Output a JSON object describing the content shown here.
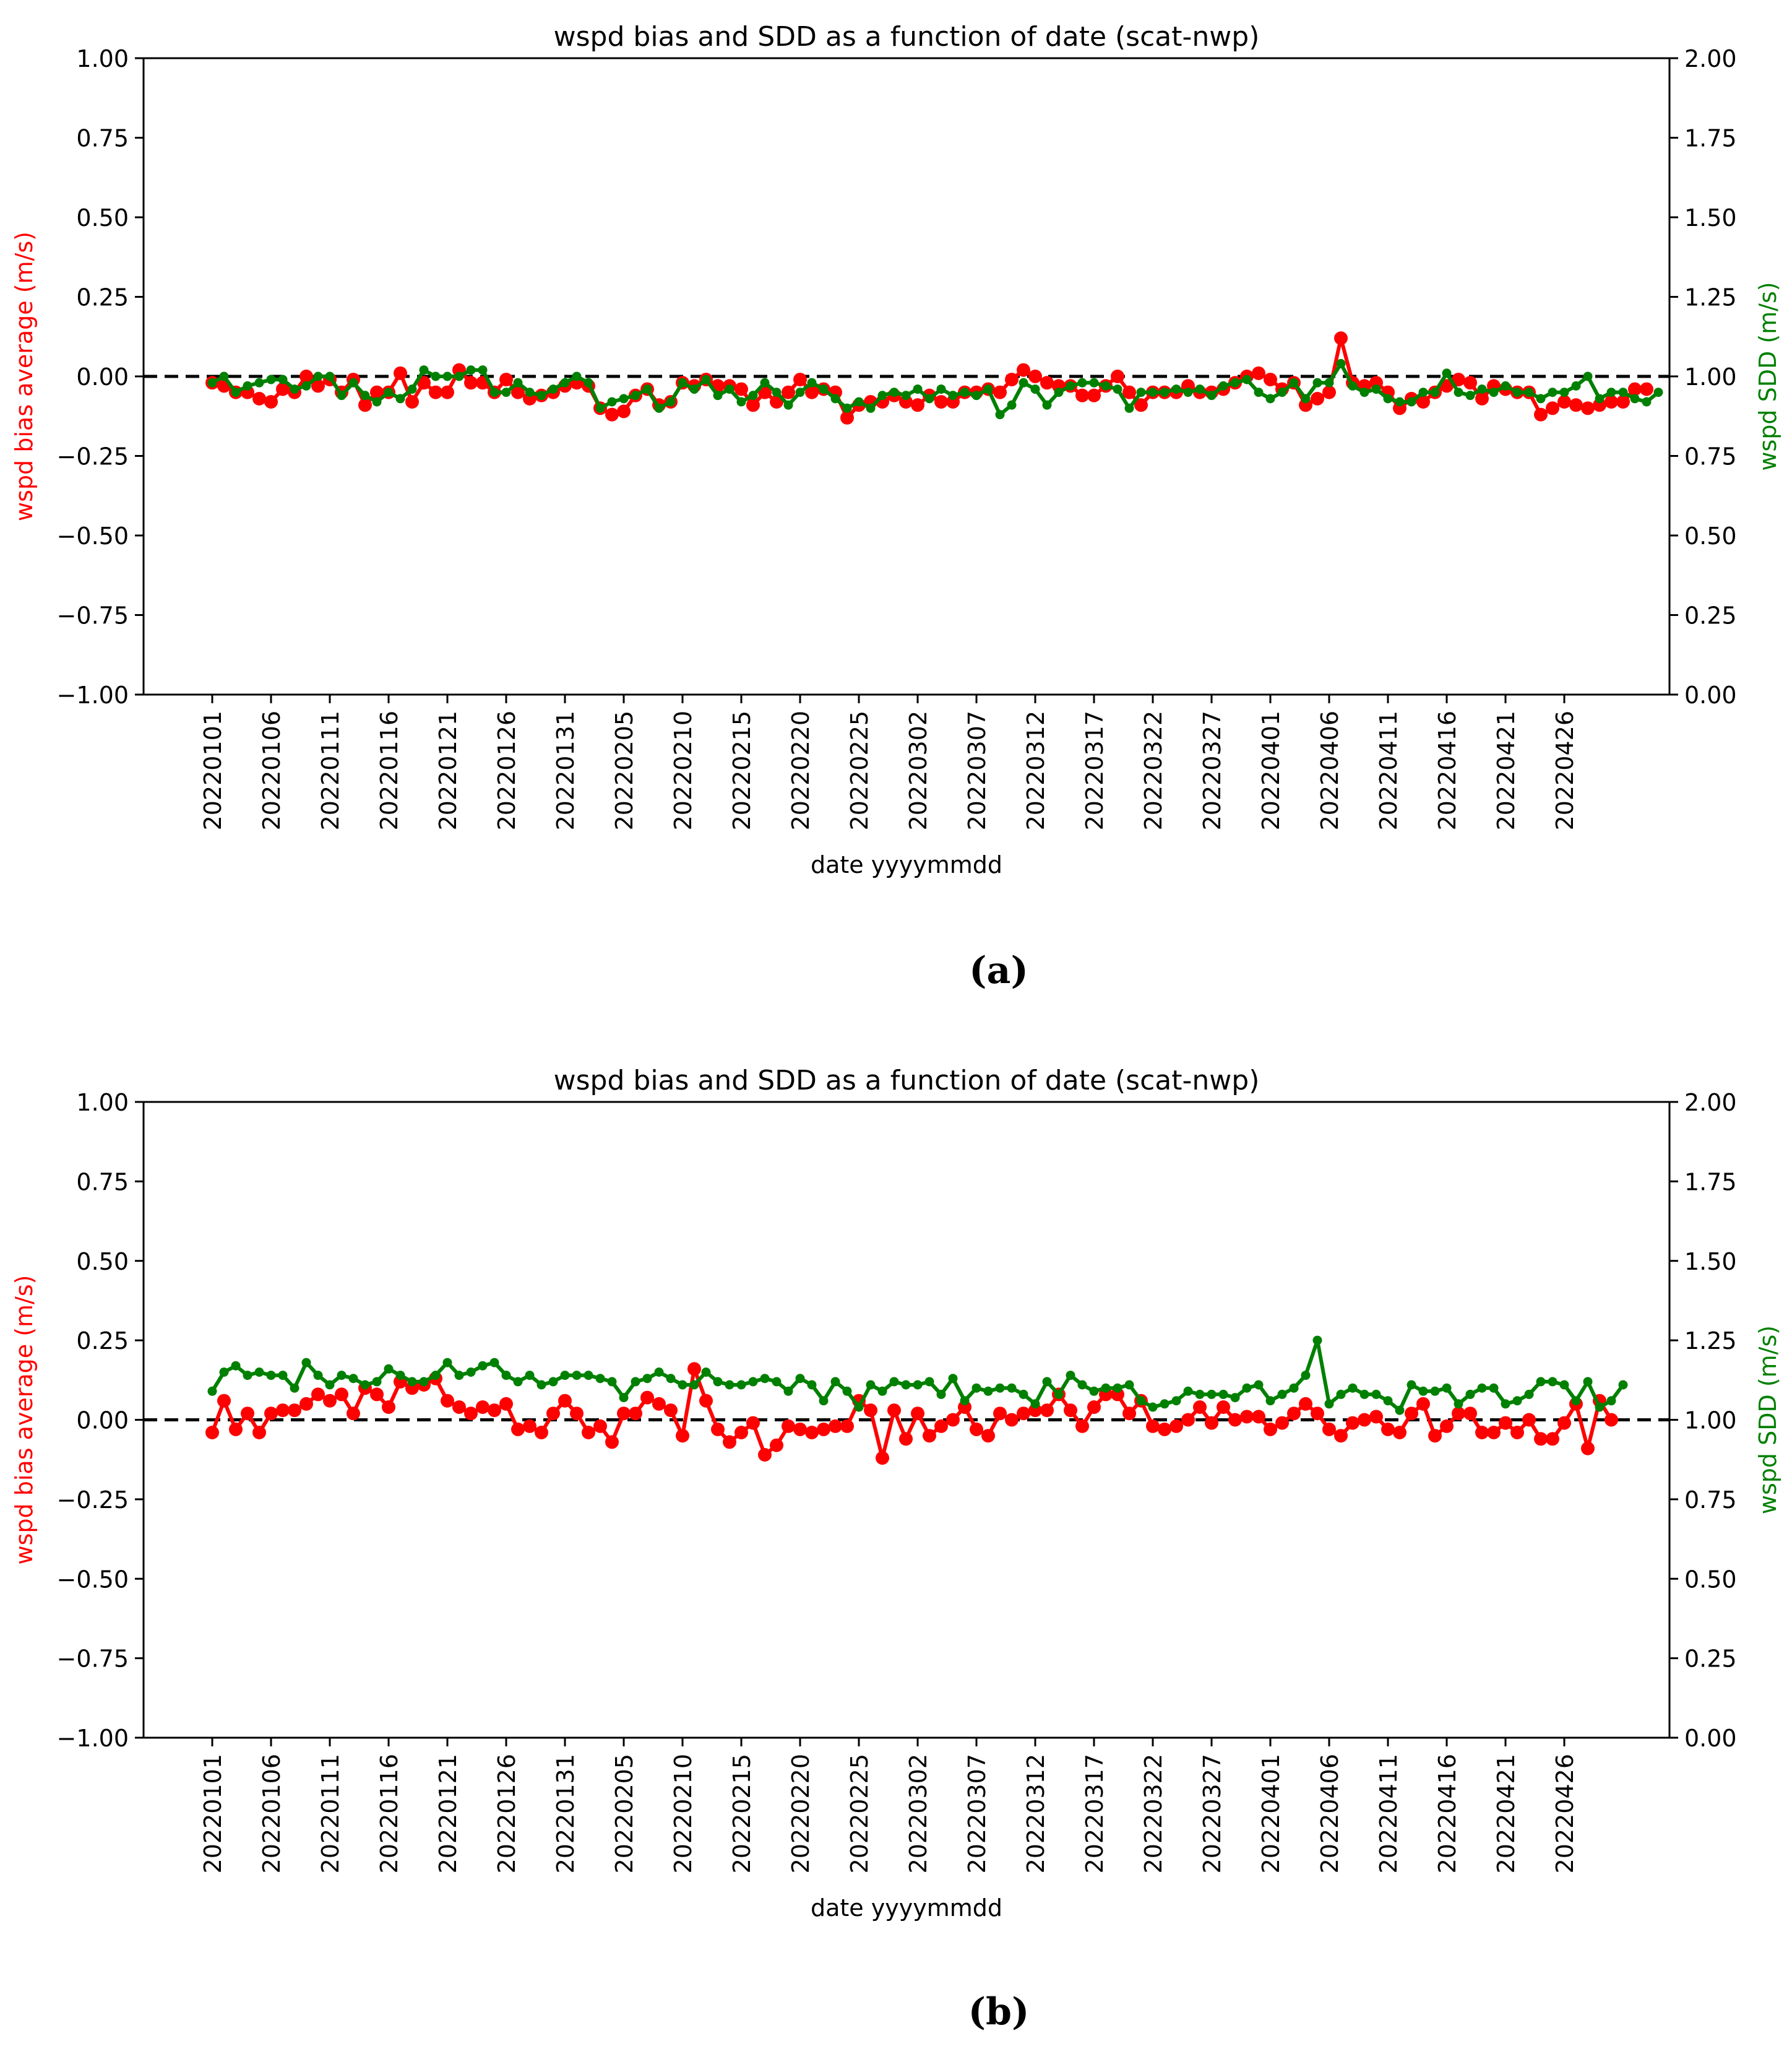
{
  "colors": {
    "bias": "#ff0000",
    "sdd": "#008000",
    "zero_line": "#000000",
    "axes": "#000000"
  },
  "chart_data": [
    {
      "type": "line",
      "panel_label": "(a)",
      "title": "wspd bias and SDD as a function of date (scat-nwp)",
      "xlabel": "date yyyymmdd",
      "ylabel": "wspd bias average (m/s)",
      "y2label": "wspd SDD (m/s)",
      "ylim": [
        -1.0,
        1.0
      ],
      "y2lim": [
        0.0,
        2.0
      ],
      "yticks": [
        "1.00",
        "0.75",
        "0.50",
        "0.25",
        "0.00",
        "−0.25",
        "−0.50",
        "−0.75",
        "−1.00"
      ],
      "y2ticks": [
        "2.00",
        "1.75",
        "1.50",
        "1.25",
        "1.00",
        "0.75",
        "0.50",
        "0.25",
        "0.00"
      ],
      "xtick_labels": [
        "20220101",
        "20220106",
        "20220111",
        "20220116",
        "20220121",
        "20220126",
        "20220131",
        "20220205",
        "20220210",
        "20220215",
        "20220220",
        "20220225",
        "20220302",
        "20220307",
        "20220312",
        "20220317",
        "20220322",
        "20220327",
        "20220401",
        "20220406",
        "20220411",
        "20220416",
        "20220421",
        "20220426"
      ],
      "zero_line": 0,
      "legend": "none",
      "grid": false,
      "series": [
        {
          "axis": "left",
          "values": [
            -0.02,
            -0.03,
            -0.05,
            -0.05,
            -0.07,
            -0.08,
            -0.04,
            -0.05,
            0.0,
            -0.03,
            -0.01,
            -0.05,
            -0.01,
            -0.09,
            -0.05,
            -0.05,
            0.01,
            -0.08,
            -0.02,
            -0.05,
            -0.05,
            0.02,
            -0.02,
            -0.02,
            -0.05,
            -0.01,
            -0.05,
            -0.07,
            -0.06,
            -0.05,
            -0.03,
            -0.02,
            -0.03,
            -0.1,
            -0.12,
            -0.11,
            -0.06,
            -0.04,
            -0.09,
            -0.08,
            -0.02,
            -0.03,
            -0.01,
            -0.03,
            -0.03,
            -0.04,
            -0.09,
            -0.05,
            -0.08,
            -0.05,
            -0.01,
            -0.05,
            -0.04,
            -0.05,
            -0.13,
            -0.09,
            -0.08,
            -0.08,
            -0.06,
            -0.08,
            -0.09,
            -0.06,
            -0.08,
            -0.08,
            -0.05,
            -0.05,
            -0.04,
            -0.05,
            -0.01,
            0.02,
            0.0,
            -0.02,
            -0.03,
            -0.03,
            -0.06,
            -0.06,
            -0.03,
            0.0,
            -0.05,
            -0.09,
            -0.05,
            -0.05,
            -0.05,
            -0.03,
            -0.05,
            -0.05,
            -0.04,
            -0.02,
            0.0,
            0.01,
            -0.01,
            -0.04,
            -0.02,
            -0.09,
            -0.07,
            -0.05,
            0.12,
            -0.02,
            -0.03,
            -0.02,
            -0.05,
            -0.1,
            -0.07,
            -0.08,
            -0.05,
            -0.03,
            -0.01,
            -0.02,
            -0.07,
            -0.03,
            -0.04,
            -0.05,
            -0.05,
            -0.12,
            -0.1,
            -0.08,
            -0.09,
            -0.1,
            -0.09,
            -0.08,
            -0.08,
            -0.04,
            -0.04
          ]
        },
        {
          "axis": "right",
          "values": [
            0.98,
            1.0,
            0.95,
            0.97,
            0.98,
            0.99,
            0.99,
            0.96,
            0.97,
            1.0,
            1.0,
            0.94,
            0.98,
            0.94,
            0.92,
            0.95,
            0.93,
            0.96,
            1.02,
            1.0,
            1.0,
            1.0,
            1.02,
            1.02,
            0.95,
            0.95,
            0.98,
            0.95,
            0.94,
            0.96,
            0.98,
            1.0,
            0.98,
            0.9,
            0.92,
            0.93,
            0.94,
            0.96,
            0.9,
            0.92,
            0.98,
            0.96,
            0.99,
            0.94,
            0.96,
            0.92,
            0.94,
            0.98,
            0.95,
            0.91,
            0.95,
            0.98,
            0.96,
            0.93,
            0.9,
            0.92,
            0.9,
            0.94,
            0.95,
            0.94,
            0.96,
            0.93,
            0.96,
            0.94,
            0.95,
            0.94,
            0.96,
            0.88,
            0.91,
            0.98,
            0.96,
            0.91,
            0.95,
            0.97,
            0.98,
            0.98,
            0.97,
            0.96,
            0.9,
            0.95,
            0.95,
            0.95,
            0.96,
            0.95,
            0.96,
            0.94,
            0.97,
            0.98,
            0.99,
            0.95,
            0.93,
            0.95,
            0.98,
            0.93,
            0.98,
            0.98,
            1.04,
            0.97,
            0.95,
            0.96,
            0.93,
            0.92,
            0.92,
            0.95,
            0.95,
            1.01,
            0.95,
            0.94,
            0.96,
            0.95,
            0.97,
            0.95,
            0.95,
            0.93,
            0.95,
            0.95,
            0.97,
            1.0,
            0.93,
            0.95,
            0.95,
            0.93,
            0.92,
            0.95
          ]
        }
      ]
    },
    {
      "type": "line",
      "panel_label": "(b)",
      "title": "wspd bias and SDD as a function of date (scat-nwp)",
      "xlabel": "date yyyymmdd",
      "ylabel": "wspd bias average (m/s)",
      "y2label": "wspd SDD (m/s)",
      "ylim": [
        -1.0,
        1.0
      ],
      "y2lim": [
        0.0,
        2.0
      ],
      "yticks": [
        "1.00",
        "0.75",
        "0.50",
        "0.25",
        "0.00",
        "−0.25",
        "−0.50",
        "−0.75",
        "−1.00"
      ],
      "y2ticks": [
        "2.00",
        "1.75",
        "1.50",
        "1.25",
        "1.00",
        "0.75",
        "0.50",
        "0.25",
        "0.00"
      ],
      "xtick_labels": [
        "20220101",
        "20220106",
        "20220111",
        "20220116",
        "20220121",
        "20220126",
        "20220131",
        "20220205",
        "20220210",
        "20220215",
        "20220220",
        "20220225",
        "20220302",
        "20220307",
        "20220312",
        "20220317",
        "20220322",
        "20220327",
        "20220401",
        "20220406",
        "20220411",
        "20220416",
        "20220421",
        "20220426"
      ],
      "zero_line": 0,
      "legend": "none",
      "grid": false,
      "series": [
        {
          "axis": "left",
          "values": [
            -0.04,
            0.06,
            -0.03,
            0.02,
            -0.04,
            0.02,
            0.03,
            0.03,
            0.05,
            0.08,
            0.06,
            0.08,
            0.02,
            0.1,
            0.08,
            0.04,
            0.12,
            0.1,
            0.11,
            0.13,
            0.06,
            0.04,
            0.02,
            0.04,
            0.03,
            0.05,
            -0.03,
            -0.02,
            -0.04,
            0.02,
            0.06,
            0.02,
            -0.04,
            -0.02,
            -0.07,
            0.02,
            0.02,
            0.07,
            0.05,
            0.03,
            -0.05,
            0.16,
            0.06,
            -0.03,
            -0.07,
            -0.04,
            -0.01,
            -0.11,
            -0.08,
            -0.02,
            -0.03,
            -0.04,
            -0.03,
            -0.02,
            -0.02,
            0.06,
            0.03,
            -0.12,
            0.03,
            -0.06,
            0.02,
            -0.05,
            -0.02,
            0.0,
            0.04,
            -0.03,
            -0.05,
            0.02,
            0.0,
            0.02,
            0.03,
            0.03,
            0.08,
            0.03,
            -0.02,
            0.04,
            0.08,
            0.08,
            0.02,
            0.06,
            -0.02,
            -0.03,
            -0.02,
            0.0,
            0.04,
            -0.01,
            0.04,
            0.0,
            0.01,
            0.01,
            -0.03,
            -0.01,
            0.02,
            0.05,
            0.02,
            -0.03,
            -0.05,
            -0.01,
            0.0,
            0.01,
            -0.03,
            -0.04,
            0.02,
            0.05,
            -0.05,
            -0.02,
            0.02,
            0.02,
            -0.04,
            -0.04,
            -0.01,
            -0.04,
            0.0,
            -0.06,
            -0.06,
            -0.01,
            0.05,
            -0.09,
            0.06,
            0.0
          ]
        },
        {
          "axis": "right",
          "values": [
            1.09,
            1.15,
            1.17,
            1.14,
            1.15,
            1.14,
            1.14,
            1.1,
            1.18,
            1.14,
            1.11,
            1.14,
            1.13,
            1.11,
            1.12,
            1.16,
            1.14,
            1.12,
            1.12,
            1.14,
            1.18,
            1.14,
            1.15,
            1.17,
            1.18,
            1.14,
            1.12,
            1.14,
            1.11,
            1.12,
            1.14,
            1.14,
            1.14,
            1.13,
            1.12,
            1.07,
            1.12,
            1.13,
            1.15,
            1.13,
            1.11,
            1.11,
            1.15,
            1.12,
            1.11,
            1.11,
            1.12,
            1.13,
            1.12,
            1.09,
            1.13,
            1.11,
            1.06,
            1.12,
            1.09,
            1.04,
            1.11,
            1.09,
            1.12,
            1.11,
            1.11,
            1.12,
            1.08,
            1.13,
            1.06,
            1.1,
            1.09,
            1.1,
            1.1,
            1.08,
            1.05,
            1.12,
            1.08,
            1.14,
            1.11,
            1.09,
            1.1,
            1.1,
            1.11,
            1.06,
            1.04,
            1.05,
            1.06,
            1.09,
            1.08,
            1.08,
            1.08,
            1.07,
            1.1,
            1.11,
            1.06,
            1.08,
            1.1,
            1.14,
            1.25,
            1.05,
            1.08,
            1.1,
            1.08,
            1.08,
            1.06,
            1.03,
            1.11,
            1.09,
            1.09,
            1.1,
            1.05,
            1.08,
            1.1,
            1.1,
            1.05,
            1.06,
            1.08,
            1.12,
            1.12,
            1.11,
            1.06,
            1.12,
            1.04,
            1.06,
            1.11
          ]
        }
      ]
    }
  ]
}
